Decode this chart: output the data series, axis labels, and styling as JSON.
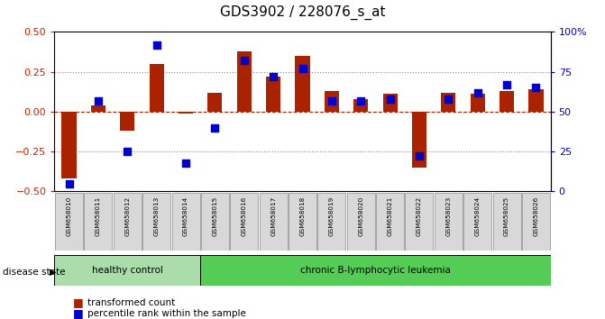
{
  "title": "GDS3902 / 228076_s_at",
  "samples": [
    "GSM658010",
    "GSM658011",
    "GSM658012",
    "GSM658013",
    "GSM658014",
    "GSM658015",
    "GSM658016",
    "GSM658017",
    "GSM658018",
    "GSM658019",
    "GSM658020",
    "GSM658021",
    "GSM658022",
    "GSM658023",
    "GSM658024",
    "GSM658025",
    "GSM658026"
  ],
  "transformed_count": [
    -0.42,
    0.04,
    -0.12,
    0.3,
    -0.01,
    0.12,
    0.38,
    0.22,
    0.35,
    0.13,
    0.08,
    0.11,
    -0.35,
    0.12,
    0.11,
    0.13,
    0.14
  ],
  "percentile_rank": [
    5,
    57,
    25,
    92,
    18,
    40,
    82,
    72,
    77,
    57,
    57,
    58,
    22,
    58,
    62,
    67,
    65
  ],
  "groups": [
    {
      "label": "healthy control",
      "start": 0,
      "end": 5,
      "color": "#aaddaa"
    },
    {
      "label": "chronic B-lymphocytic leukemia",
      "start": 5,
      "end": 17,
      "color": "#55cc55"
    }
  ],
  "bar_color": "#aa2200",
  "dot_color": "#0000cc",
  "ylim_left": [
    -0.5,
    0.5
  ],
  "ylim_right": [
    0,
    100
  ],
  "yticks_left": [
    -0.5,
    -0.25,
    0,
    0.25,
    0.5
  ],
  "yticks_right": [
    0,
    25,
    50,
    75,
    100
  ],
  "ylabel_left_color": "#cc2200",
  "ylabel_right_color": "#0000cc",
  "hline_dotted_values": [
    -0.25,
    0.25
  ],
  "background_color": "#ffffff",
  "title_fontsize": 11,
  "disease_state_label": "disease state",
  "legend_items": [
    {
      "label": "transformed count",
      "color": "#aa2200"
    },
    {
      "label": "percentile rank within the sample",
      "color": "#0000cc"
    }
  ]
}
